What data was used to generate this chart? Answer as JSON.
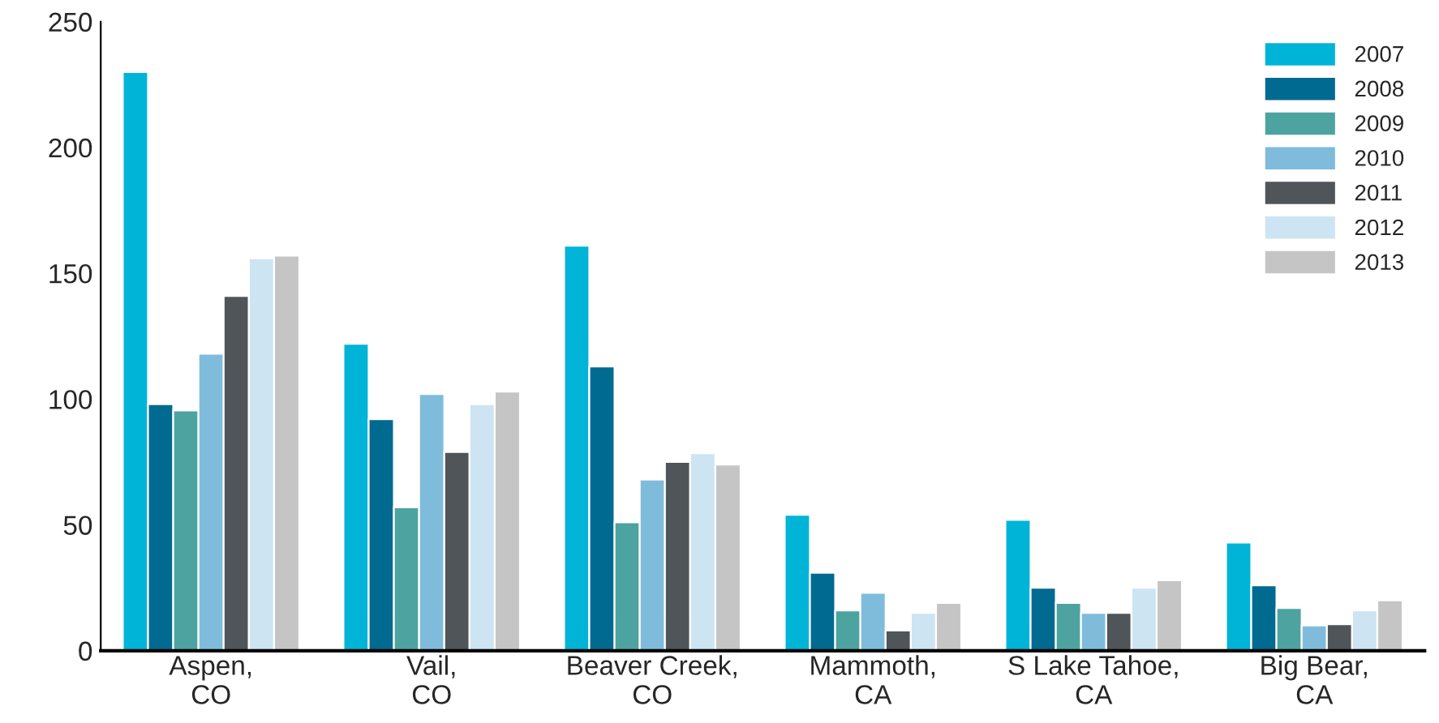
{
  "chart_data": {
    "type": "bar",
    "categories": [
      "Aspen,\nCO",
      "Vail,\nCO",
      "Beaver Creek,\nCO",
      "Mammoth,\nCA",
      "S Lake Tahoe,\nCA",
      "Big Bear,\nCA"
    ],
    "series": [
      {
        "name": "2007",
        "color": "#00b4d8",
        "values": [
          230,
          122,
          161,
          54,
          52,
          43
        ]
      },
      {
        "name": "2008",
        "color": "#006a91",
        "values": [
          98,
          92,
          113,
          31,
          25,
          26
        ]
      },
      {
        "name": "2009",
        "color": "#4da3a0",
        "values": [
          95.5,
          57,
          51,
          16,
          19,
          17
        ]
      },
      {
        "name": "2010",
        "color": "#7fbcdc",
        "values": [
          118,
          102,
          68,
          23,
          15,
          10
        ]
      },
      {
        "name": "2011",
        "color": "#505559",
        "values": [
          141,
          79,
          75,
          8,
          15,
          10.5
        ]
      },
      {
        "name": "2012",
        "color": "#cde4f2",
        "values": [
          156,
          98,
          78.5,
          15,
          25,
          16
        ]
      },
      {
        "name": "2013",
        "color": "#c5c5c5",
        "values": [
          157,
          103,
          74,
          19,
          28,
          20
        ]
      }
    ],
    "ylim": [
      0,
      250
    ],
    "yticks": [
      0,
      50,
      100,
      150,
      200,
      250
    ],
    "grid": false,
    "legend": "top right"
  }
}
